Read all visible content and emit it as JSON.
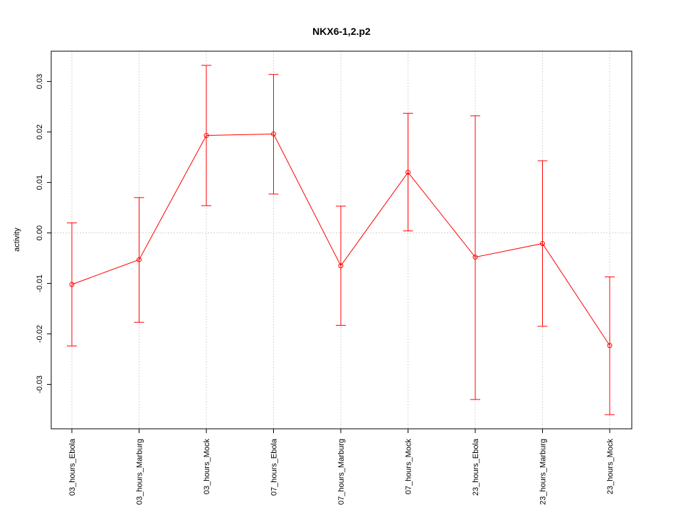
{
  "chart_data": {
    "type": "line",
    "title": "NKX6-1,2.p2",
    "xlabel": "",
    "ylabel": "activity",
    "categories": [
      "03_hours_Ebola",
      "03_hours_Marburg",
      "03_hours_Mock",
      "07_hours_Ebola",
      "07_hours_Marburg",
      "07_hours_Mock",
      "23_hours_Ebola",
      "23_hours_Marburg",
      "23_hours_Mock"
    ],
    "series": [
      {
        "values": [
          -0.0102,
          -0.0053,
          0.0193,
          0.0196,
          -0.0065,
          0.012,
          -0.0048,
          -0.0021,
          -0.0223
        ],
        "upper": [
          0.002,
          0.007,
          0.0332,
          0.0314,
          0.0053,
          0.0237,
          0.0232,
          0.0143,
          -0.0087
        ],
        "lower": [
          -0.0224,
          -0.0177,
          0.0054,
          0.0077,
          -0.0183,
          0.0004,
          -0.033,
          -0.0185,
          -0.036
        ]
      }
    ],
    "yticks": [
      -0.03,
      -0.02,
      -0.01,
      0.0,
      0.01,
      0.02,
      0.03
    ],
    "ytick_labels": [
      "-0.03",
      "-0.02",
      "-0.01",
      "0.00",
      "0.01",
      "0.02",
      "0.03"
    ],
    "ylim": [
      -0.0388,
      0.036
    ],
    "grid": true,
    "colors": {
      "series": "#ff0000",
      "grid": "#d3d3d3",
      "axis": "#000000"
    }
  }
}
